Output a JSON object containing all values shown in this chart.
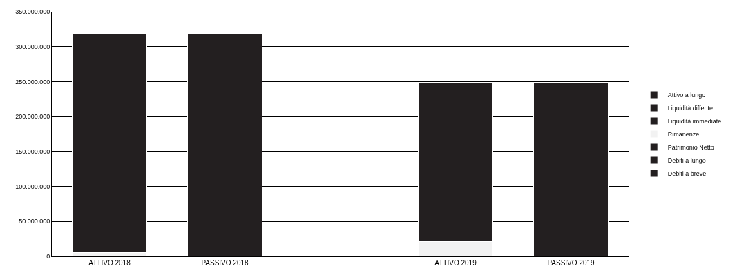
{
  "chart_data": {
    "type": "bar",
    "stacked": true,
    "categories": [
      "ATTIVO 2018",
      "PASSIVO 2018",
      null,
      "ATTIVO 2019",
      "PASSIVO 2019"
    ],
    "series": [
      {
        "name": "Debiti a breve",
        "color": "#231f20",
        "values": [
          null,
          null,
          null,
          null,
          73000000
        ]
      },
      {
        "name": "Debiti a lungo",
        "color": "#231f20",
        "values": [
          null,
          null,
          null,
          null,
          null
        ]
      },
      {
        "name": "Patrimonio Netto",
        "color": "#231f20",
        "values": [
          null,
          318000000,
          null,
          null,
          175000000
        ]
      },
      {
        "name": "Rimanenze",
        "color": "#f2f2f2",
        "values": [
          5000000,
          null,
          null,
          21000000,
          null
        ]
      },
      {
        "name": "Liquidità immediate",
        "color": "#231f20",
        "values": [
          null,
          null,
          null,
          null,
          null
        ]
      },
      {
        "name": "Liquidità differite",
        "color": "#231f20",
        "values": [
          null,
          null,
          null,
          null,
          null
        ]
      },
      {
        "name": "Attivo a lungo",
        "color": "#231f20",
        "values": [
          313000000,
          null,
          null,
          227000000,
          null
        ]
      }
    ],
    "ylim": [
      0,
      350000000
    ],
    "yticks": [
      0,
      {
        "value": 50000000,
        "label": "50.000.000"
      },
      {
        "value": 100000000,
        "label": "100.000.000"
      },
      {
        "value": 150000000,
        "label": "150.000.000"
      },
      {
        "value": 200000000,
        "label": "200.000.000"
      },
      {
        "value": 250000000,
        "label": "250.000.000"
      },
      {
        "value": 300000000,
        "label": "300.000.000"
      },
      {
        "value": 350000000,
        "label": "350.000.000"
      }
    ],
    "grid": "y",
    "legend": "right"
  }
}
